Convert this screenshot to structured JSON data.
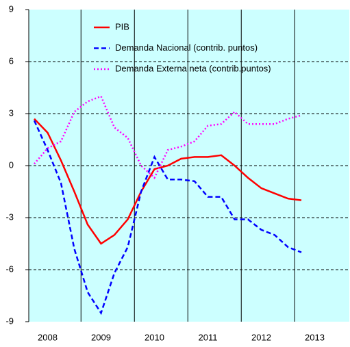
{
  "chart_data": {
    "type": "line",
    "categories": [
      null,
      "2008",
      null,
      null,
      null,
      "2009",
      null,
      null,
      null,
      "2010",
      null,
      null,
      null,
      "2011",
      null,
      null,
      null,
      "2012",
      null,
      null,
      null,
      "2013"
    ],
    "series": [
      {
        "name": "PIB",
        "color": "#ff0000",
        "style": "solid",
        "values": [
          2.7,
          1.9,
          0.3,
          -1.5,
          -3.4,
          -4.5,
          -4.0,
          -3.1,
          -1.5,
          -0.2,
          0.0,
          0.4,
          0.5,
          0.5,
          0.6,
          0.0,
          -0.7,
          -1.3,
          -1.6,
          -1.9,
          -2.0,
          null
        ]
      },
      {
        "name": "Demanda Nacional (contrib. puntos)",
        "color": "#0000ff",
        "style": "dashed",
        "values": [
          2.6,
          0.9,
          -1.0,
          -4.8,
          -7.3,
          -8.5,
          -6.2,
          -4.7,
          -1.5,
          0.5,
          -0.8,
          -0.8,
          -0.9,
          -1.8,
          -1.8,
          -3.1,
          -3.1,
          -3.7,
          -4.0,
          -4.7,
          -5.0,
          null
        ]
      },
      {
        "name": "Demanda Externa neta (contrib.puntos)",
        "color": "#ff00ff",
        "style": "dotted",
        "values": [
          0.1,
          1.0,
          1.4,
          3.1,
          3.7,
          4.0,
          2.2,
          1.6,
          0.0,
          -0.7,
          0.9,
          1.1,
          1.4,
          2.3,
          2.4,
          3.1,
          2.4,
          2.4,
          2.4,
          2.7,
          2.9,
          null
        ]
      }
    ],
    "ylim": [
      -9,
      9
    ],
    "yticks": [
      -9,
      -6,
      -3,
      0,
      3,
      6,
      9
    ],
    "grid": true,
    "background": "#ccffff",
    "legend": "top-left"
  }
}
